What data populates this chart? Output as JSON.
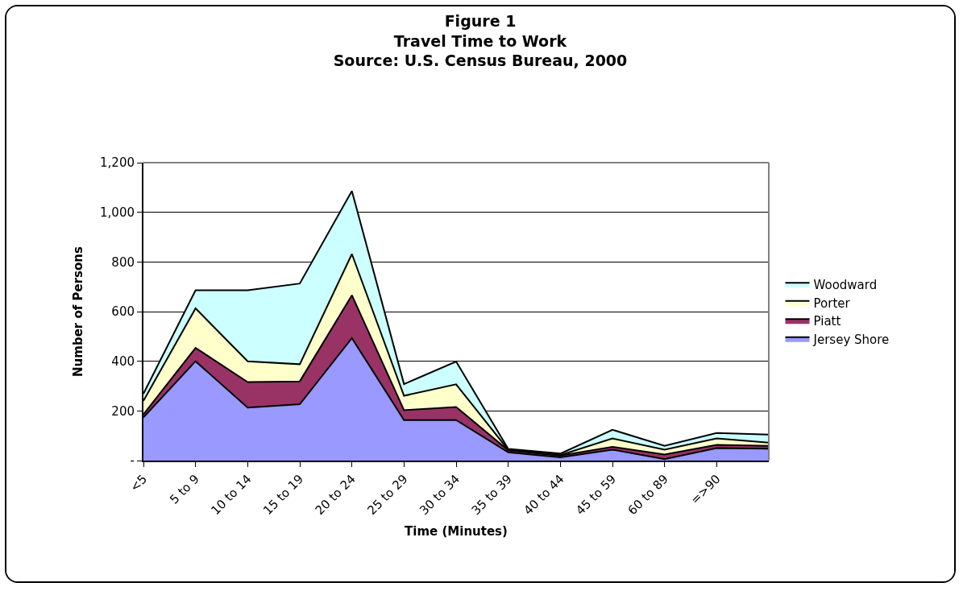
{
  "chart_data": {
    "type": "area",
    "stacked": true,
    "title": "Figure 1\nTravel Time to Work\nSource: U.S. Census Bureau, 2000",
    "xlabel": "Time (Minutes)",
    "ylabel": "Number of Persons",
    "categories": [
      "<5",
      "5 to 9",
      "10 to 14",
      "15 to 19",
      "20 to 24",
      "25 to 29",
      "30 to 34",
      "35 to 39",
      "40 to 44",
      "45 to 59",
      "60 to 89",
      "=>90",
      null
    ],
    "series": [
      {
        "name": "Jersey Shore",
        "color": "#9999ff",
        "values": [
          174,
          400,
          213,
          227,
          493,
          163,
          163,
          33,
          13,
          44,
          6,
          50,
          48
        ]
      },
      {
        "name": "Piatt",
        "color": "#993366",
        "values": [
          12,
          54,
          103,
          92,
          173,
          40,
          53,
          8,
          7,
          11,
          18,
          13,
          11
        ]
      },
      {
        "name": "Porter",
        "color": "#ffffcc",
        "values": [
          55,
          159,
          84,
          69,
          166,
          58,
          91,
          2,
          2,
          34,
          20,
          26,
          13
        ]
      },
      {
        "name": "Woodward",
        "color": "#ccffff",
        "values": [
          28,
          73,
          286,
          325,
          254,
          47,
          92,
          4,
          6,
          35,
          15,
          22,
          33
        ]
      }
    ],
    "ylim": [
      0,
      1200
    ],
    "yticks": [
      {
        "value": 0,
        "label": "-"
      },
      {
        "value": 200,
        "label": "200"
      },
      {
        "value": 400,
        "label": "400"
      },
      {
        "value": 600,
        "label": "600"
      },
      {
        "value": 800,
        "label": "800"
      },
      {
        "value": 1000,
        "label": "1,000"
      },
      {
        "value": 1200,
        "label": "1,200"
      }
    ],
    "grid": "y",
    "legend": "right",
    "line_style": "solid",
    "marker": "none"
  }
}
